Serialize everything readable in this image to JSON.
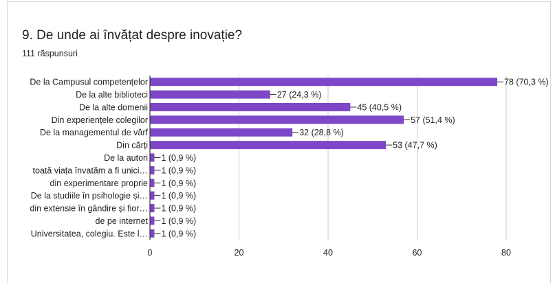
{
  "question": {
    "title": "9. De unde ai învățat despre inovație?",
    "responses": "111 răspunsuri"
  },
  "colors": {
    "bar": "#7e47c8",
    "grid": "#c9c9c9",
    "axis": "#333333",
    "text": "#202124"
  },
  "chart_data": {
    "type": "bar",
    "orientation": "horizontal",
    "categories": [
      "De la Campusul competențelor",
      "De la alte biblioteci",
      "De la alte domenii",
      "Din experiențele colegilor",
      "De la managementul de vârf",
      "Din cărți",
      "De la autori",
      "toată viața învatăm a fi unici…",
      "din experimentare proprie",
      "De la studiile în psihologie și…",
      "din extensie în gândire și fior…",
      "de pe internet",
      "Universitatea, colegiu. Este l…"
    ],
    "values": [
      78,
      27,
      45,
      57,
      32,
      53,
      1,
      1,
      1,
      1,
      1,
      1,
      1
    ],
    "data_labels": [
      "78 (70,3 %)",
      "27 (24,3 %)",
      "45 (40,5 %)",
      "57 (51,4 %)",
      "32 (28,8 %)",
      "53 (47,7 %)",
      "1 (0,9 %)",
      "1 (0,9 %)",
      "1 (0,9 %)",
      "1 (0,9 %)",
      "1 (0,9 %)",
      "1 (0,9 %)",
      "1 (0,9 %)"
    ],
    "xticks": [
      "0",
      "20",
      "40",
      "60",
      "80"
    ],
    "xlim": [
      0,
      80
    ],
    "grid": true,
    "title": "",
    "xlabel": "",
    "ylabel": ""
  }
}
